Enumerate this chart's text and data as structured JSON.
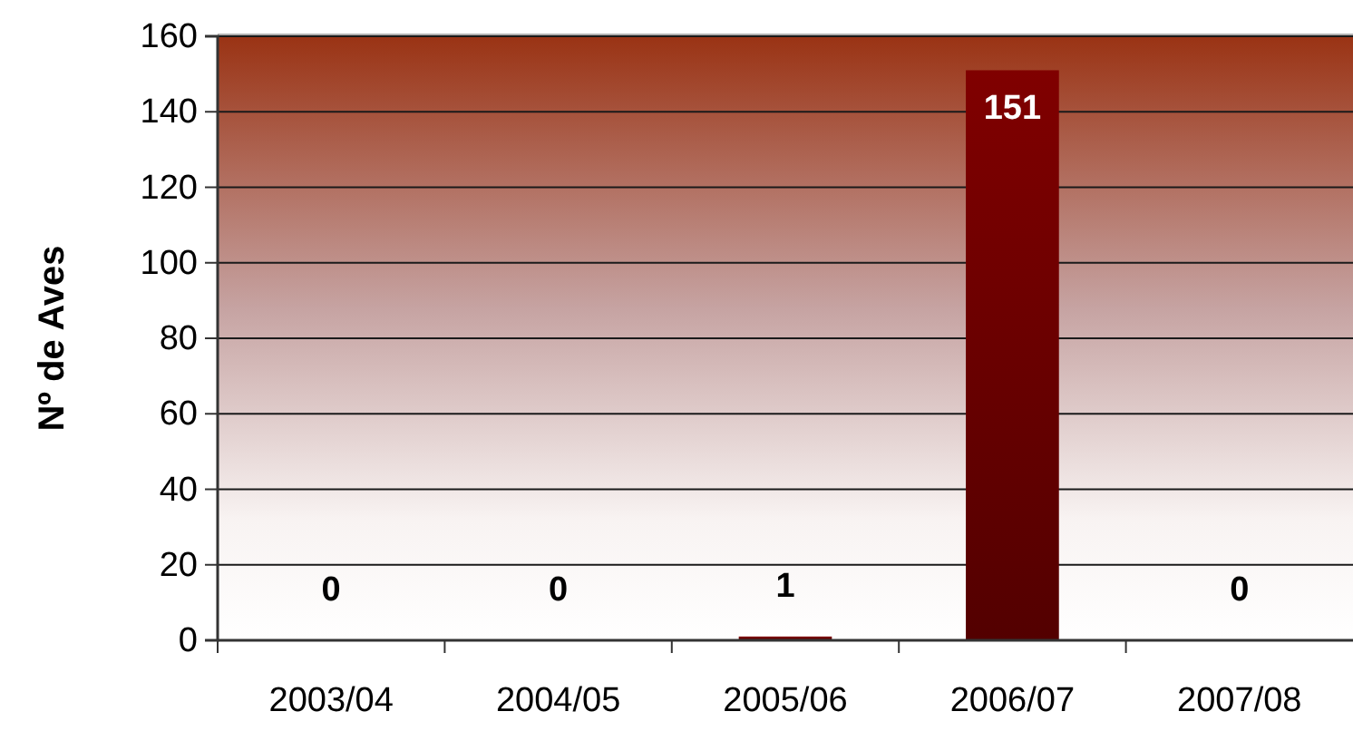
{
  "chart_data": {
    "type": "bar",
    "ylabel": "Nº de Aves",
    "categories": [
      "2003/04",
      "2004/05",
      "2005/06",
      "2006/07",
      "2007/08"
    ],
    "values": [
      0,
      0,
      1,
      151,
      0
    ],
    "color": "#800000",
    "ylim": [
      0,
      160
    ],
    "yticks": [
      0,
      20,
      40,
      60,
      80,
      100,
      120,
      140,
      160
    ],
    "grid": "y",
    "data_labels": true
  }
}
